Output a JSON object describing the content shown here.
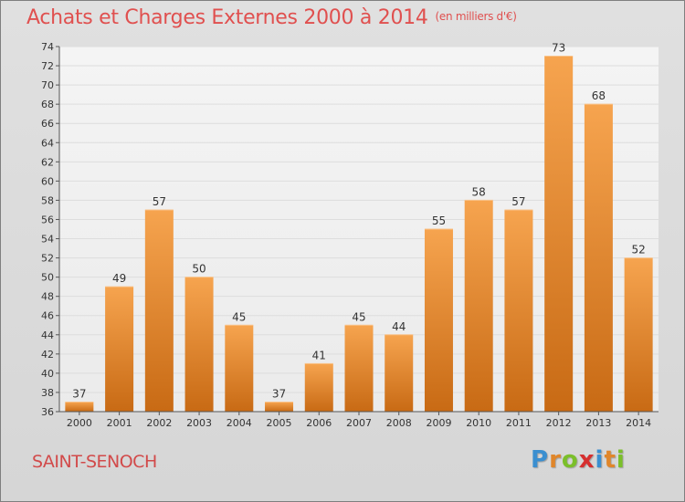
{
  "header": {
    "title": "Achats et Charges Externes 2000 à 2014",
    "subtitle": "(en milliers d'€)"
  },
  "footer": {
    "place": "SAINT-SENOCH",
    "logo_letters": [
      "P",
      "r",
      "o",
      "x",
      "i",
      "t",
      "i"
    ],
    "logo_colors": [
      "#3b8fd0",
      "#e0862a",
      "#7bbf2a",
      "#d62f2f",
      "#3b8fd0",
      "#e0862a",
      "#7bbf2a"
    ]
  },
  "chart_data": {
    "type": "bar",
    "title": "Achats et Charges Externes 2000 à 2014",
    "subtitle": "(en milliers d'€)",
    "categories": [
      "2000",
      "2001",
      "2002",
      "2003",
      "2004",
      "2005",
      "2006",
      "2007",
      "2008",
      "2009",
      "2010",
      "2011",
      "2012",
      "2013",
      "2014"
    ],
    "values": [
      37,
      49,
      57,
      50,
      45,
      37,
      41,
      45,
      44,
      55,
      58,
      57,
      73,
      68,
      52
    ],
    "ylim": [
      36,
      74
    ],
    "yticks": [
      36,
      38,
      40,
      42,
      44,
      46,
      48,
      50,
      52,
      54,
      56,
      58,
      60,
      62,
      64,
      66,
      68,
      70,
      72,
      74
    ],
    "grid": true,
    "bar_color_top": "#f6a44f",
    "bar_color_bottom": "#c86a14"
  }
}
